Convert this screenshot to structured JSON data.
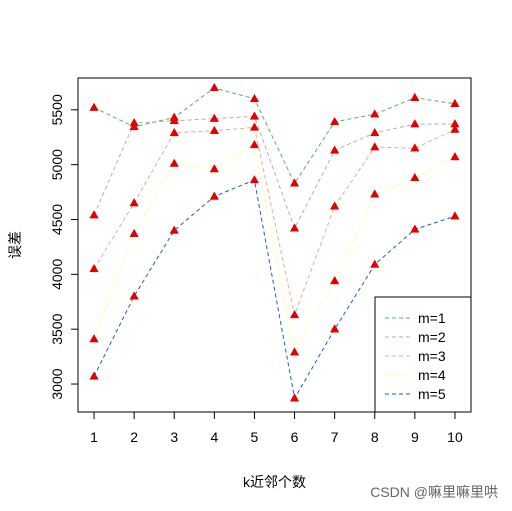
{
  "chart_data": {
    "type": "line",
    "title": "",
    "xlabel": "k近邻个数",
    "ylabel": "误差",
    "x": [
      1,
      2,
      3,
      4,
      5,
      6,
      7,
      8,
      9,
      10
    ],
    "xticks": [
      "1",
      "2",
      "3",
      "4",
      "5",
      "6",
      "7",
      "8",
      "9",
      "10"
    ],
    "yticks": [
      "3000",
      "3500",
      "4000",
      "4500",
      "5000",
      "5500"
    ],
    "ylim": [
      2745,
      5790
    ],
    "xlim": [
      0.6,
      10.4
    ],
    "grid": false,
    "legend_position": "bottom-right",
    "marker": "triangle",
    "marker_color": "#e00000",
    "series": [
      {
        "name": "m=1",
        "color": "#57b257",
        "values": [
          5520,
          5345,
          5430,
          5700,
          5600,
          4830,
          5390,
          5460,
          5610,
          5555
        ]
      },
      {
        "name": "m=2",
        "color": "#b0b0b0",
        "values": [
          4540,
          5380,
          5400,
          5420,
          5440,
          4420,
          5130,
          5290,
          5370,
          5370
        ]
      },
      {
        "name": "m=3",
        "color": "#f5a88c",
        "values": [
          4050,
          4650,
          5290,
          5310,
          5340,
          3630,
          4620,
          5160,
          5150,
          5320
        ]
      },
      {
        "name": "m=4",
        "color": "#ffff99",
        "values": [
          3410,
          4370,
          5010,
          4960,
          5180,
          3290,
          3940,
          4730,
          4880,
          5070
        ]
      },
      {
        "name": "m=5",
        "color": "#1f5fb8",
        "values": [
          3070,
          3800,
          4400,
          4710,
          4860,
          2870,
          3500,
          4090,
          4410,
          4530
        ]
      }
    ]
  },
  "watermark": "CSDN @嘛里嘛里哄"
}
